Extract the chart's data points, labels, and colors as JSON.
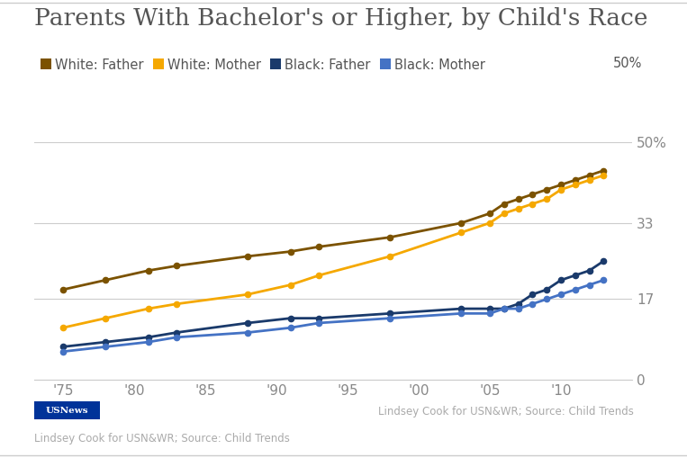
{
  "title": "Parents With Bachelor's or Higher, by Child's Race",
  "background_color": "#ffffff",
  "grid_color": "#cccccc",
  "ylim": [
    0,
    50
  ],
  "yticks": [
    0,
    17,
    33,
    50
  ],
  "ytick_labels": [
    "0",
    "17",
    "33",
    "50%"
  ],
  "xlabel_years": [
    "'75",
    "'80",
    "'85",
    "'90",
    "'95",
    "'00",
    "'05",
    "'10"
  ],
  "xtick_positions": [
    1975,
    1980,
    1985,
    1990,
    1995,
    2000,
    2005,
    2010
  ],
  "white_father": {
    "years": [
      1975,
      1978,
      1981,
      1983,
      1988,
      1991,
      1993,
      1998,
      2003,
      2005,
      2006,
      2007,
      2008,
      2009,
      2010,
      2011,
      2012,
      2013
    ],
    "values": [
      19,
      21,
      23,
      24,
      26,
      27,
      28,
      30,
      33,
      35,
      37,
      38,
      39,
      40,
      41,
      42,
      43,
      44
    ],
    "color": "#7B5200",
    "label": "White: Father"
  },
  "white_mother": {
    "years": [
      1975,
      1978,
      1981,
      1983,
      1988,
      1991,
      1993,
      1998,
      2003,
      2005,
      2006,
      2007,
      2008,
      2009,
      2010,
      2011,
      2012,
      2013
    ],
    "values": [
      11,
      13,
      15,
      16,
      18,
      20,
      22,
      26,
      31,
      33,
      35,
      36,
      37,
      38,
      40,
      41,
      42,
      43
    ],
    "color": "#F5A800",
    "label": "White: Mother"
  },
  "black_father": {
    "years": [
      1975,
      1978,
      1981,
      1983,
      1988,
      1991,
      1993,
      1998,
      2003,
      2005,
      2006,
      2007,
      2008,
      2009,
      2010,
      2011,
      2012,
      2013
    ],
    "values": [
      7,
      8,
      9,
      10,
      12,
      13,
      13,
      14,
      15,
      15,
      15,
      16,
      18,
      19,
      21,
      22,
      23,
      25
    ],
    "color": "#1A3A6B",
    "label": "Black: Father"
  },
  "black_mother": {
    "years": [
      1975,
      1978,
      1981,
      1983,
      1988,
      1991,
      1993,
      1998,
      2003,
      2005,
      2006,
      2007,
      2008,
      2009,
      2010,
      2011,
      2012,
      2013
    ],
    "values": [
      6,
      7,
      8,
      9,
      10,
      11,
      12,
      13,
      14,
      14,
      15,
      15,
      16,
      17,
      18,
      19,
      20,
      21
    ],
    "color": "#4472C4",
    "label": "Black: Mother"
  },
  "footer_left": "Lindsey Cook for USN&WR; Source: Child Trends",
  "footer_right": "Lindsey Cook for USN&WR; Source: Child Trends",
  "usnews_label": "USNews",
  "title_color": "#555555",
  "legend_color": "#555555",
  "tick_color": "#888888",
  "footer_color": "#aaaaaa",
  "title_fontsize": 19,
  "legend_fontsize": 10.5,
  "tick_fontsize": 11,
  "footer_fontsize": 8.5
}
